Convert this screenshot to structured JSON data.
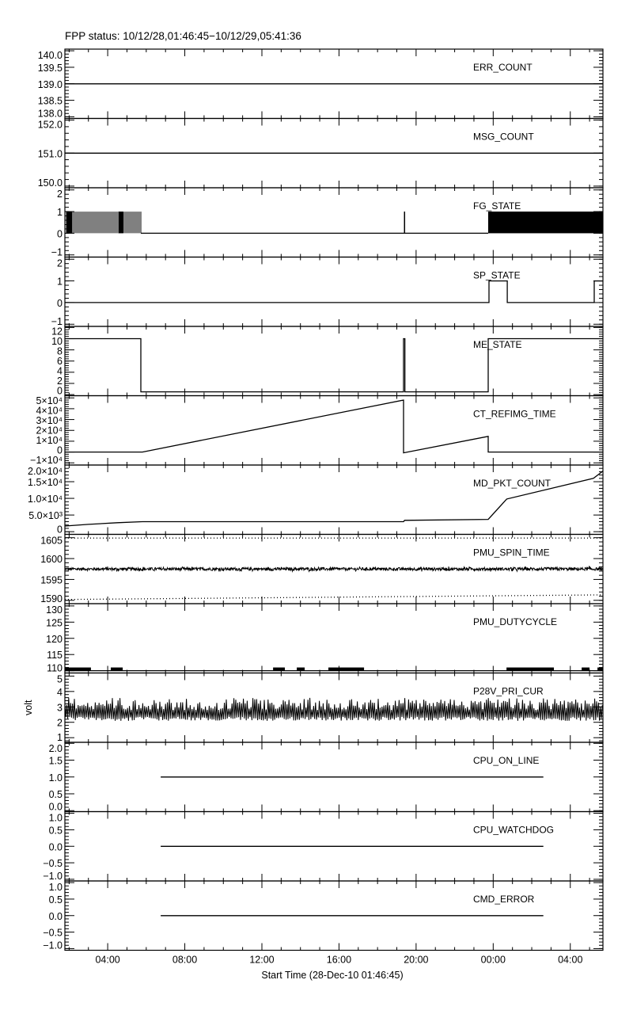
{
  "chart_data": {
    "type": "line",
    "title": "FPP status: 10/12/28,01:46:45−10/12/29,05:41:36",
    "xlabel": "Start Time (28-Dec-10 01:46:45)",
    "x_units": "hours since 28-Dec-10 00:00",
    "xlim": [
      1.779,
      29.693
    ],
    "xticks": [
      {
        "value": 4,
        "label": "04:00"
      },
      {
        "value": 8,
        "label": "08:00"
      },
      {
        "value": 12,
        "label": "12:00"
      },
      {
        "value": 16,
        "label": "16:00"
      },
      {
        "value": 20,
        "label": "20:00"
      },
      {
        "value": 24,
        "label": "00:00"
      },
      {
        "value": 28,
        "label": "04:00"
      }
    ],
    "grid": false,
    "panels": [
      {
        "label": "ERR_COUNT",
        "ylim": [
          137.95,
          140.05
        ],
        "yticks": [
          {
            "v": 138,
            "t": "138.0"
          },
          {
            "v": 138.5,
            "t": "138.5"
          },
          {
            "v": 139,
            "t": "139.0"
          },
          {
            "v": 139.5,
            "t": "139.5"
          },
          {
            "v": 140,
            "t": "140.0"
          }
        ],
        "series": [
          {
            "type": "line",
            "points": [
              [
                1.779,
                139
              ],
              [
                29.693,
                139
              ]
            ]
          }
        ]
      },
      {
        "label": "MSG_COUNT",
        "ylim": [
          149.95,
          152.05
        ],
        "yticks": [
          {
            "v": 150,
            "t": "150.0"
          },
          {
            "v": 151,
            "t": "151.0"
          },
          {
            "v": 152,
            "t": "152.0"
          }
        ],
        "series": [
          {
            "type": "line",
            "points": [
              [
                1.779,
                151
              ],
              [
                29.693,
                151
              ]
            ]
          }
        ]
      },
      {
        "label": "FG_STATE",
        "ylim": [
          -1.1,
          2.1
        ],
        "yticks": [
          {
            "v": -1,
            "t": "−1"
          },
          {
            "v": 0,
            "t": "0"
          },
          {
            "v": 1,
            "t": "1"
          },
          {
            "v": 2,
            "t": "2"
          }
        ],
        "series": [
          {
            "type": "pulses",
            "range": [
              1.779,
              5.72
            ],
            "low": 0,
            "high": 1
          },
          {
            "type": "blocks",
            "ranges": [
              [
                1.85,
                2.15
              ],
              [
                4.55,
                4.8
              ],
              [
                19.37,
                19.42
              ],
              [
                23.74,
                29.69
              ]
            ],
            "low": 0,
            "high": 1
          },
          {
            "type": "line",
            "points": [
              [
                5.72,
                0
              ],
              [
                23.74,
                0
              ]
            ]
          }
        ]
      },
      {
        "label": "SP_STATE",
        "ylim": [
          -1.1,
          2.1
        ],
        "yticks": [
          {
            "v": -1,
            "t": "−1"
          },
          {
            "v": 0,
            "t": "0"
          },
          {
            "v": 1,
            "t": "1"
          },
          {
            "v": 2,
            "t": "2"
          }
        ],
        "series": [
          {
            "type": "line",
            "points": [
              [
                1.779,
                0
              ],
              [
                23.78,
                0
              ],
              [
                23.78,
                1
              ],
              [
                24.73,
                1
              ],
              [
                24.73,
                0
              ],
              [
                29.24,
                0
              ],
              [
                29.24,
                1
              ],
              [
                29.693,
                1
              ]
            ]
          }
        ]
      },
      {
        "label": "ME_STATE",
        "ylim": [
          -0.2,
          12.2
        ],
        "yticks": [
          {
            "v": 0,
            "t": "0"
          },
          {
            "v": 2,
            "t": "2"
          },
          {
            "v": 4,
            "t": "4"
          },
          {
            "v": 6,
            "t": "6"
          },
          {
            "v": 8,
            "t": "8"
          },
          {
            "v": 10,
            "t": "10"
          },
          {
            "v": 12,
            "t": "12"
          }
        ],
        "series": [
          {
            "type": "line",
            "points": [
              [
                1.779,
                10
              ],
              [
                5.72,
                10
              ],
              [
                5.72,
                0.5
              ],
              [
                19.35,
                0.5
              ],
              [
                19.35,
                10
              ],
              [
                19.42,
                10
              ],
              [
                19.42,
                0.5
              ],
              [
                23.74,
                0.5
              ],
              [
                23.74,
                10
              ],
              [
                29.693,
                10
              ]
            ]
          }
        ]
      },
      {
        "label": "CT_REFIMG_TIME",
        "ylim": [
          -12000,
          52000
        ],
        "yticks": [
          {
            "v": -10000,
            "t": "−1×10⁴"
          },
          {
            "v": 0,
            "t": "0"
          },
          {
            "v": 10000,
            "t": "1×10⁴"
          },
          {
            "v": 20000,
            "t": "2×10⁴"
          },
          {
            "v": 30000,
            "t": "3×10⁴"
          },
          {
            "v": 40000,
            "t": "4×10⁴"
          },
          {
            "v": 50000,
            "t": "5×10⁴"
          }
        ],
        "series": [
          {
            "type": "line",
            "points": [
              [
                1.779,
                0
              ],
              [
                5.8,
                0
              ],
              [
                19.35,
                48000
              ],
              [
                19.35,
                -700
              ],
              [
                23.74,
                14500
              ],
              [
                23.74,
                0
              ],
              [
                29.693,
                0
              ]
            ]
          }
        ]
      },
      {
        "label": "MD_PKT_COUNT",
        "ylim": [
          -800,
          20000
        ],
        "yticks": [
          {
            "v": 0,
            "t": "0"
          },
          {
            "v": 5000,
            "t": "5.0×10³"
          },
          {
            "v": 10000,
            "t": "1.0×10⁴"
          },
          {
            "v": 15000,
            "t": "1.5×10⁴"
          },
          {
            "v": 20000,
            "t": "2.0×10⁴"
          }
        ],
        "series": [
          {
            "type": "line",
            "points": [
              [
                1.779,
                1700
              ],
              [
                3,
                2200
              ],
              [
                4.5,
                2700
              ],
              [
                5.8,
                3000
              ],
              [
                19.35,
                3000
              ],
              [
                19.4,
                3400
              ],
              [
                23.74,
                3700
              ],
              [
                24.7,
                9800
              ],
              [
                29.2,
                16000
              ],
              [
                29.693,
                18200
              ]
            ]
          }
        ]
      },
      {
        "label": "PMU_SPIN_TIME",
        "ylim": [
          1589.2,
          1605.8
        ],
        "yticks": [
          {
            "v": 1590,
            "t": "1590"
          },
          {
            "v": 1595,
            "t": "1595"
          },
          {
            "v": 1600,
            "t": "1600"
          },
          {
            "v": 1605,
            "t": "1605"
          }
        ],
        "series": [
          {
            "type": "noise",
            "range": [
              1.779,
              29.693
            ],
            "min": 1596.9,
            "max": 1598.1
          },
          {
            "type": "dotted",
            "points": [
              [
                1.779,
                1604.9
              ],
              [
                29.693,
                1604.9
              ]
            ]
          },
          {
            "type": "dotted",
            "points": [
              [
                1.779,
                1590.2
              ],
              [
                29.693,
                1591.3
              ]
            ]
          }
        ]
      },
      {
        "label": "PMU_DUTYCYCLE",
        "ylim": [
          109.3,
          130.7
        ],
        "yticks": [
          {
            "v": 110,
            "t": "110"
          },
          {
            "v": 115,
            "t": "115"
          },
          {
            "v": 120,
            "t": "120"
          },
          {
            "v": 125,
            "t": "125"
          },
          {
            "v": 130,
            "t": "130"
          }
        ],
        "series": [
          {
            "type": "line",
            "points": [
              [
                1.779,
                110
              ],
              [
                29.693,
                110
              ]
            ]
          },
          {
            "type": "blocks",
            "ranges": [
              [
                1.78,
                3.13
              ],
              [
                4.16,
                4.78
              ],
              [
                12.58,
                13.19
              ],
              [
                13.81,
                14.22
              ],
              [
                15.45,
                17.3
              ],
              [
                24.69,
                27.15
              ],
              [
                28.59,
                29.0
              ],
              [
                29.41,
                29.69
              ]
            ],
            "low": 110,
            "high": 111
          }
        ]
      },
      {
        "label": "P28V_PRI_CUR",
        "ylabel": "volt",
        "ylim": [
          0.7,
          5.2
        ],
        "yticks": [
          {
            "v": 1,
            "t": "1"
          },
          {
            "v": 2,
            "t": "2"
          },
          {
            "v": 3,
            "t": "3"
          },
          {
            "v": 4,
            "t": "4"
          },
          {
            "v": 5,
            "t": "5"
          }
        ],
        "series": [
          {
            "type": "spikes",
            "range": [
              1.779,
              29.693
            ],
            "min": 2.1,
            "max": 3.6
          }
        ]
      },
      {
        "label": "CPU_ON_LINE",
        "ylim": [
          -0.03,
          2.03
        ],
        "yticks": [
          {
            "v": 0,
            "t": "0.0"
          },
          {
            "v": 0.5,
            "t": "0.5"
          },
          {
            "v": 1,
            "t": "1.0"
          },
          {
            "v": 1.5,
            "t": "1.5"
          },
          {
            "v": 2,
            "t": "2.0"
          }
        ],
        "series": [
          {
            "type": "line",
            "points": [
              [
                6.75,
                1
              ],
              [
                26.6,
                1
              ]
            ]
          }
        ]
      },
      {
        "label": "CPU_WATCHDOG",
        "ylim": [
          -1.05,
          1.05
        ],
        "yticks": [
          {
            "v": -1,
            "t": "−1.0"
          },
          {
            "v": -0.5,
            "t": "−0.5"
          },
          {
            "v": 0,
            "t": "0.0"
          },
          {
            "v": 0.5,
            "t": "0.5"
          },
          {
            "v": 1,
            "t": "1.0"
          }
        ],
        "series": [
          {
            "type": "line",
            "points": [
              [
                6.75,
                0
              ],
              [
                26.6,
                0
              ]
            ]
          }
        ]
      },
      {
        "label": "CMD_ERROR",
        "ylim": [
          -1.05,
          1.05
        ],
        "yticks": [
          {
            "v": -1,
            "t": "−1.0"
          },
          {
            "v": -0.5,
            "t": "−0.5"
          },
          {
            "v": 0,
            "t": "0.0"
          },
          {
            "v": 0.5,
            "t": "0.5"
          },
          {
            "v": 1,
            "t": "1.0"
          }
        ],
        "series": [
          {
            "type": "line",
            "points": [
              [
                6.75,
                0
              ],
              [
                26.6,
                0
              ]
            ]
          }
        ]
      }
    ]
  }
}
